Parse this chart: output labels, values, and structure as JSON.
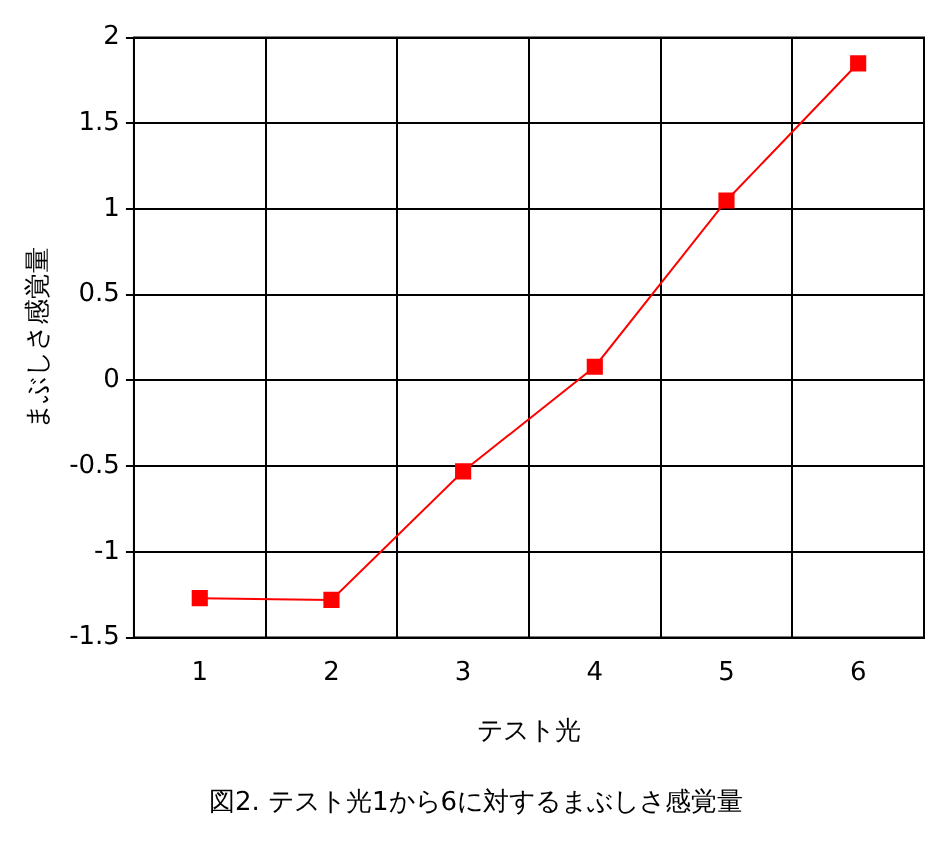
{
  "chart_data": {
    "type": "line",
    "xlabel": "テスト光",
    "ylabel": "まぶしさ感覚量",
    "categories": [
      "1",
      "2",
      "3",
      "4",
      "5",
      "6"
    ],
    "series": [
      {
        "color": "#ff0000",
        "values": [
          -1.27,
          -1.28,
          -0.53,
          0.08,
          1.05,
          1.85
        ]
      }
    ],
    "ylim": [
      -1.5,
      2
    ],
    "yticks": [
      -1.5,
      -1,
      -0.5,
      0,
      0.5,
      1,
      1.5,
      2
    ],
    "grid": true,
    "legend": false,
    "marker": "square",
    "line_style": "solid",
    "annotations": [
      "図2. テスト光1から6に対するまぶしさ感覚量"
    ]
  }
}
